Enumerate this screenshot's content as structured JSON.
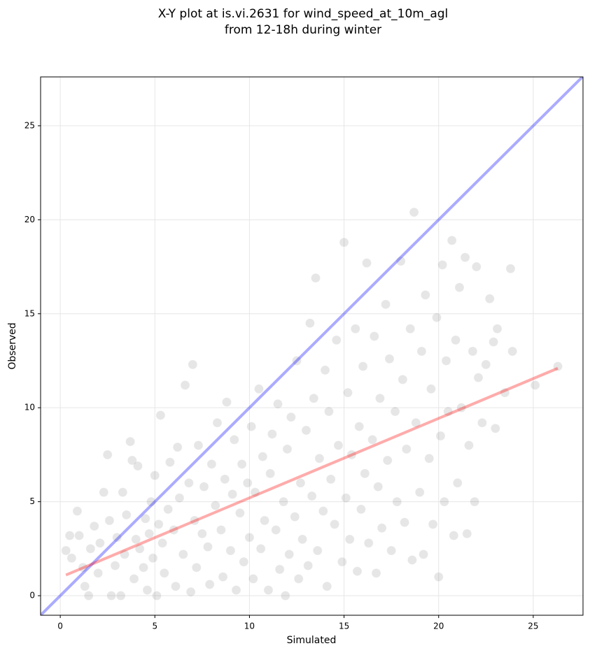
{
  "chart_data": {
    "type": "scatter",
    "title": "X-Y plot at is.vi.2631 for wind_speed_at_10m_agl",
    "subtitle": "from 12-18h during winter",
    "x_label": "Simulated",
    "y_label": "Observed",
    "xlim": [
      -1.04,
      27.63
    ],
    "ylim": [
      -1.04,
      27.6
    ],
    "xticks": [
      0,
      5,
      10,
      15,
      20,
      25
    ],
    "yticks": [
      0,
      5,
      10,
      15,
      20,
      25
    ],
    "grid": true,
    "color": "#404040",
    "x": [
      0.3,
      0.5,
      0.6,
      0.9,
      1.0,
      1.2,
      1.3,
      1.5,
      1.6,
      1.8,
      2.0,
      2.1,
      2.3,
      2.5,
      2.6,
      2.7,
      2.9,
      3.0,
      3.2,
      3.3,
      3.4,
      3.5,
      3.7,
      3.8,
      3.9,
      4.0,
      4.1,
      4.2,
      4.4,
      4.5,
      4.6,
      4.7,
      4.8,
      4.9,
      5.0,
      5.1,
      5.2,
      5.3,
      5.4,
      5.5,
      5.7,
      5.8,
      6.0,
      6.1,
      6.2,
      6.3,
      6.5,
      6.6,
      6.8,
      6.9,
      7.0,
      7.1,
      7.2,
      7.3,
      7.5,
      7.6,
      7.8,
      7.9,
      8.0,
      8.2,
      8.3,
      8.5,
      8.6,
      8.7,
      8.8,
      9.0,
      9.1,
      9.2,
      9.3,
      9.5,
      9.6,
      9.7,
      9.9,
      10.0,
      10.1,
      10.2,
      10.3,
      10.5,
      10.6,
      10.7,
      10.8,
      11.0,
      11.1,
      11.2,
      11.4,
      11.5,
      11.6,
      11.8,
      11.9,
      12.0,
      12.1,
      12.2,
      12.4,
      12.5,
      12.6,
      12.7,
      12.8,
      13.0,
      13.1,
      13.2,
      13.3,
      13.4,
      13.5,
      13.6,
      13.7,
      13.9,
      14.0,
      14.1,
      14.2,
      14.3,
      14.5,
      14.6,
      14.7,
      14.9,
      15.0,
      15.1,
      15.2,
      15.3,
      15.4,
      15.6,
      15.7,
      15.8,
      15.9,
      16.0,
      16.1,
      16.2,
      16.3,
      16.5,
      16.6,
      16.7,
      16.8,
      16.9,
      17.0,
      17.2,
      17.3,
      17.4,
      17.5,
      17.7,
      17.8,
      18.0,
      18.1,
      18.2,
      18.3,
      18.5,
      18.6,
      18.7,
      18.8,
      19.0,
      19.1,
      19.2,
      19.3,
      19.5,
      19.6,
      19.7,
      19.9,
      20.0,
      20.1,
      20.2,
      20.3,
      20.4,
      20.5,
      20.7,
      20.8,
      20.9,
      21.0,
      21.1,
      21.2,
      21.4,
      21.5,
      21.6,
      21.8,
      21.9,
      22.0,
      22.1,
      22.3,
      22.5,
      22.7,
      22.9,
      23.0,
      23.1,
      23.5,
      23.8,
      23.9,
      25.1,
      26.3
    ],
    "values": [
      2.4,
      3.2,
      2.0,
      4.5,
      3.2,
      1.5,
      0.5,
      0,
      2.5,
      3.7,
      1.2,
      2.8,
      5.5,
      7.5,
      4.0,
      0,
      1.6,
      3.1,
      0,
      5.5,
      2.2,
      4.3,
      8.2,
      7.2,
      0.9,
      3.0,
      6.9,
      2.5,
      1.5,
      4.1,
      0.3,
      3.3,
      5.0,
      2.0,
      6.4,
      0,
      3.8,
      9.6,
      2.8,
      1.2,
      4.6,
      7.1,
      3.5,
      0.5,
      7.9,
      5.2,
      2.2,
      11.2,
      6.0,
      0.2,
      12.3,
      4.0,
      1.5,
      8.0,
      3.3,
      5.8,
      2.6,
      0.6,
      7.0,
      4.8,
      9.2,
      3.5,
      1.0,
      6.2,
      10.3,
      2.4,
      5.4,
      8.3,
      0.3,
      4.4,
      7.0,
      1.8,
      6.0,
      3.1,
      9.0,
      0.9,
      5.5,
      11.0,
      2.5,
      7.4,
      4.0,
      0.3,
      6.5,
      8.6,
      3.5,
      10.2,
      1.4,
      5.0,
      0,
      7.8,
      2.2,
      9.5,
      4.2,
      12.5,
      0.9,
      6.0,
      3.0,
      8.8,
      1.6,
      14.5,
      5.3,
      10.5,
      16.9,
      2.4,
      7.3,
      4.5,
      12.0,
      0.5,
      9.8,
      6.2,
      3.8,
      13.6,
      8.0,
      1.8,
      18.8,
      5.2,
      10.8,
      3.0,
      7.5,
      14.2,
      1.3,
      9.0,
      4.6,
      12.2,
      6.5,
      17.7,
      2.8,
      8.3,
      13.8,
      1.2,
      5.8,
      10.5,
      3.6,
      15.5,
      7.2,
      12.6,
      2.4,
      9.8,
      5.0,
      17.8,
      11.5,
      3.9,
      7.8,
      14.2,
      1.9,
      20.4,
      9.2,
      5.5,
      13.0,
      2.2,
      16.0,
      7.3,
      11.0,
      3.8,
      14.8,
      1.0,
      8.5,
      17.6,
      5.0,
      12.5,
      9.8,
      18.9,
      3.2,
      13.6,
      6.0,
      16.4,
      10.0,
      18.0,
      3.3,
      8.0,
      13.0,
      5.0,
      17.5,
      11.6,
      9.2,
      12.3,
      15.8,
      13.5,
      8.9,
      14.2,
      10.8,
      17.4,
      13.0,
      11.2,
      12.2
    ],
    "lines": [
      {
        "color": "#0000ff",
        "x": [
          -1.04,
          27.63
        ],
        "values": [
          -1.04,
          27.63
        ]
      },
      {
        "color": "#ff0000",
        "x": [
          0.3,
          26.3
        ],
        "values": [
          1.1,
          12.1
        ]
      }
    ]
  }
}
